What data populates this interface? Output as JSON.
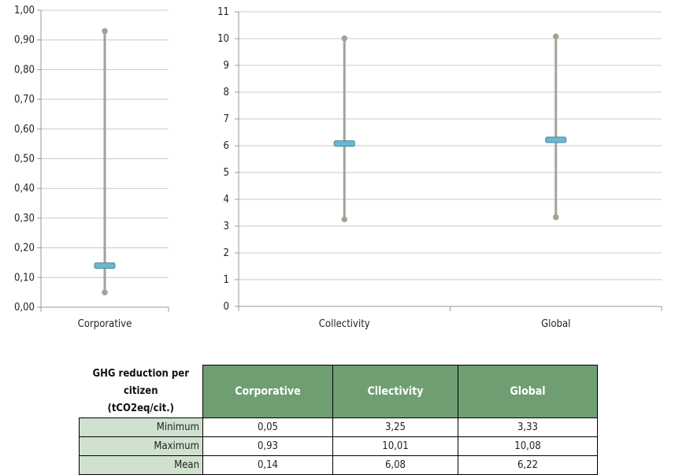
{
  "colors": {
    "whisker": "#a3a397",
    "mean_marker": "#6fb6cd",
    "grid": "#c8c8c8",
    "header_bg": "#6f9e73",
    "row_label_bg": "#cfe2cf"
  },
  "chart_data": [
    {
      "type": "range",
      "categories": [
        "Corporative"
      ],
      "series": [
        {
          "name": "Minimum",
          "values": [
            0.05
          ]
        },
        {
          "name": "Maximum",
          "values": [
            0.93
          ]
        },
        {
          "name": "Mean",
          "values": [
            0.14
          ]
        }
      ],
      "yticks": [
        "0,00",
        "0,10",
        "0,20",
        "0,30",
        "0,40",
        "0,50",
        "0,60",
        "0,70",
        "0,80",
        "0,90",
        "1,00"
      ],
      "ylim": [
        0,
        1
      ],
      "grid": true
    },
    {
      "type": "range",
      "categories": [
        "Collectivity",
        "Global"
      ],
      "series": [
        {
          "name": "Minimum",
          "values": [
            3.25,
            3.33
          ]
        },
        {
          "name": "Maximum",
          "values": [
            10.01,
            10.08
          ]
        },
        {
          "name": "Mean",
          "values": [
            6.08,
            6.22
          ]
        }
      ],
      "yticks": [
        "0",
        "1",
        "2",
        "3",
        "4",
        "5",
        "6",
        "7",
        "8",
        "9",
        "10",
        "11"
      ],
      "ylim": [
        0,
        11
      ],
      "grid": true
    }
  ],
  "table": {
    "title_line1": "GHG reduction per citizen",
    "title_line2": "(tCO2eq/cit.)",
    "columns": [
      "Corporative",
      "Cllectivity",
      "Global"
    ],
    "rows": [
      {
        "label": "Minimum",
        "cells": [
          "0,05",
          "3,25",
          "3,33"
        ]
      },
      {
        "label": "Maximum",
        "cells": [
          "0,93",
          "10,01",
          "10,08"
        ]
      },
      {
        "label": "Mean",
        "cells": [
          "0,14",
          "6,08",
          "6,22"
        ]
      }
    ]
  }
}
